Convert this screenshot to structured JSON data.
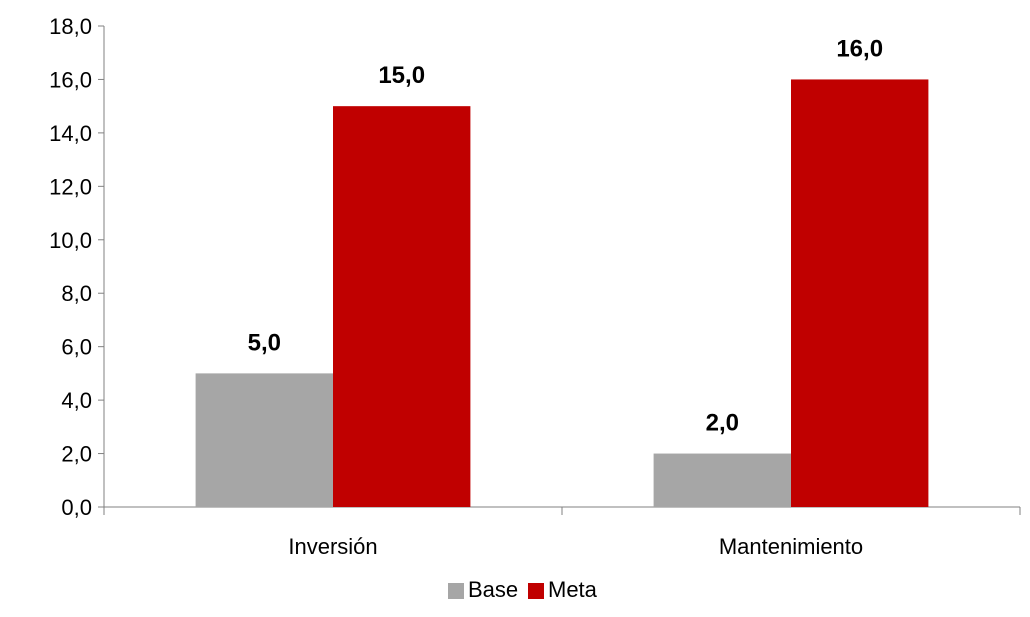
{
  "chart_data": {
    "type": "bar",
    "categories": [
      "Inversión",
      "Mantenimiento"
    ],
    "series": [
      {
        "name": "Base",
        "values": [
          5.0,
          2.0
        ],
        "color": "#a6a6a6"
      },
      {
        "name": "Meta",
        "values": [
          15.0,
          16.0
        ],
        "color": "#c00000"
      }
    ],
    "value_labels": [
      [
        "5,0",
        "2,0"
      ],
      [
        "15,0",
        "16,0"
      ]
    ],
    "yticks": [
      0,
      2,
      4,
      6,
      8,
      10,
      12,
      14,
      16,
      18
    ],
    "ytick_labels": [
      "0,0",
      "2,0",
      "4,0",
      "6,0",
      "8,0",
      "10,0",
      "12,0",
      "14,0",
      "16,0",
      "18,0"
    ],
    "ylim": [
      0,
      18
    ],
    "grid": false,
    "legend": "bottom"
  }
}
